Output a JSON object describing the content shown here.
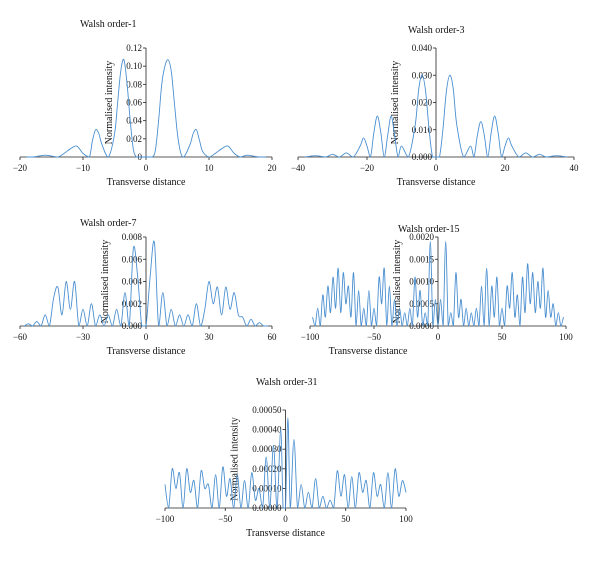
{
  "chart_data": [
    {
      "type": "line",
      "title": "Walsh order-1",
      "xlabel": "Transverse distance",
      "ylabel": "Normalised intensity",
      "xlim": [
        -20,
        20
      ],
      "ylim": [
        0,
        0.12
      ],
      "xticks": [
        -20,
        -10,
        0,
        10,
        20
      ],
      "xtick_labels": [
        "−20",
        "−10",
        "0",
        "10",
        "20"
      ],
      "yticks": [
        0,
        0.02,
        0.04,
        0.06,
        0.08,
        0.1,
        0.12
      ],
      "ytick_labels": [
        "0",
        "0.02",
        "0.04",
        "0.06",
        "0.08",
        "0.10",
        "0.12"
      ],
      "series": [
        {
          "x": [
            -19,
            -18,
            -17,
            -16,
            -15,
            -14,
            -13,
            -12,
            -11,
            -10,
            -9,
            -8.5,
            -8,
            -7.5,
            -7,
            -6,
            -5,
            -4.5,
            -4,
            -3.5,
            -3,
            -2.5,
            -2,
            -1.5,
            -1,
            0,
            1,
            1.5,
            2,
            2.5,
            3,
            3.5,
            4,
            4.5,
            5,
            5.5,
            6,
            7,
            7.5,
            8,
            8.5,
            9,
            10,
            11,
            12,
            13,
            14,
            15,
            16,
            17,
            18,
            19
          ],
          "y": [
            0,
            0,
            0.001,
            0.002,
            0.001,
            0,
            0.004,
            0.009,
            0.012,
            0.004,
            0,
            0.018,
            0.03,
            0.026,
            0.014,
            0,
            0.025,
            0.06,
            0.095,
            0.107,
            0.08,
            0.04,
            0.008,
            0,
            0,
            0,
            0,
            0.008,
            0.04,
            0.08,
            0.1,
            0.107,
            0.095,
            0.06,
            0.025,
            0.005,
            0,
            0.014,
            0.026,
            0.03,
            0.018,
            0.006,
            0,
            0.004,
            0.009,
            0.012,
            0.004,
            0,
            0.002,
            0.001,
            0,
            0
          ]
        }
      ]
    },
    {
      "type": "line",
      "title": "Walsh order-3",
      "xlabel": "Transverse distance",
      "ylabel": "Normalised intensity",
      "xlim": [
        -40,
        40
      ],
      "ylim": [
        0,
        0.04
      ],
      "xticks": [
        -40,
        -20,
        0,
        20,
        40
      ],
      "xtick_labels": [
        "−40",
        "−20",
        "0",
        "20",
        "40"
      ],
      "yticks": [
        0,
        0.01,
        0.02,
        0.03,
        0.04
      ],
      "ytick_labels": [
        "0.000",
        "0.010",
        "0.020",
        "0.030",
        "0.040"
      ],
      "series": [
        {
          "x": [
            -38,
            -35,
            -32,
            -30,
            -28,
            -26,
            -24,
            -22,
            -21,
            -20,
            -19,
            -18,
            -17,
            -16,
            -15,
            -14,
            -13,
            -12,
            -11,
            -10,
            -8,
            -6,
            -5,
            -4,
            -3,
            -2,
            -1,
            0,
            1,
            2,
            3,
            4,
            5,
            6,
            8,
            10,
            11,
            12,
            13,
            14,
            15,
            16,
            17,
            18,
            19,
            20,
            21,
            22,
            24,
            26,
            28,
            30,
            32,
            35,
            38
          ],
          "y": [
            0,
            0.0005,
            0,
            0.001,
            0,
            0.0015,
            0,
            0.004,
            0.007,
            0.004,
            0,
            0.009,
            0.015,
            0.009,
            0,
            0.008,
            0.015,
            0.008,
            0,
            0.004,
            0,
            0.012,
            0.025,
            0.03,
            0.024,
            0.01,
            0,
            0,
            0,
            0.01,
            0.024,
            0.03,
            0.025,
            0.012,
            0,
            0.004,
            0,
            0.008,
            0.013,
            0.008,
            0,
            0.009,
            0.015,
            0.009,
            0,
            0.004,
            0.007,
            0.004,
            0,
            0.0015,
            0,
            0.001,
            0,
            0.0005,
            0
          ]
        }
      ]
    },
    {
      "type": "line",
      "title": "Walsh order-7",
      "xlabel": "Transverse distance",
      "ylabel": "Normalised intensity",
      "xlim": [
        -60,
        60
      ],
      "ylim": [
        0,
        0.008
      ],
      "xticks": [
        -60,
        -30,
        0,
        30,
        60
      ],
      "xtick_labels": [
        "−60",
        "−30",
        "0",
        "30",
        "60"
      ],
      "yticks": [
        0,
        0.002,
        0.004,
        0.006,
        0.008
      ],
      "ytick_labels": [
        "0.000",
        "0.002",
        "0.004",
        "0.006",
        "0.008"
      ],
      "series": [
        {
          "x": [
            -58,
            -56,
            -54,
            -52,
            -50,
            -48,
            -46,
            -44,
            -42,
            -40,
            -38,
            -36,
            -34,
            -32,
            -30,
            -28,
            -26,
            -24,
            -22,
            -20,
            -18,
            -16,
            -14,
            -12,
            -10,
            -8,
            -6,
            -4,
            -2,
            0,
            2,
            4,
            6,
            8,
            10,
            12,
            14,
            16,
            18,
            20,
            22,
            24,
            26,
            28,
            30,
            32,
            34,
            36,
            38,
            40,
            42,
            44,
            46,
            48,
            50,
            52,
            54,
            56,
            58
          ],
          "y": [
            0,
            0.0002,
            0,
            0.0004,
            0,
            0.001,
            0,
            0.0025,
            0.0035,
            0.001,
            0.004,
            0.0015,
            0.004,
            0,
            0.0015,
            0,
            0.002,
            0,
            0.001,
            0,
            0.001,
            0,
            0.0015,
            0,
            0.003,
            0,
            0.007,
            0.0045,
            0,
            0,
            0.0045,
            0.0075,
            0,
            0.003,
            0,
            0.0015,
            0,
            0.001,
            0,
            0.001,
            0,
            0.002,
            0,
            0.0015,
            0.004,
            0.002,
            0.0035,
            0.001,
            0.0035,
            0.0015,
            0.003,
            0.001,
            0.0008,
            0,
            0.0006,
            0,
            0.0003,
            0,
            0
          ]
        }
      ]
    },
    {
      "type": "line",
      "title": "Walsh order-15",
      "xlabel": "Transverse distance",
      "ylabel": "Normalised intensity",
      "xlim": [
        -100,
        100
      ],
      "ylim": [
        0,
        0.002
      ],
      "xticks": [
        -100,
        -50,
        0,
        50,
        100
      ],
      "xtick_labels": [
        "−100",
        "−50",
        "0",
        "50",
        "100"
      ],
      "yticks": [
        0,
        0.0005,
        0.001,
        0.0015,
        0.002
      ],
      "ytick_labels": [
        "0.0000",
        "0.0005",
        "0.0010",
        "0.0015",
        "0.0020"
      ],
      "series": [
        {
          "x": [
            -98,
            -96,
            -94,
            -92,
            -90,
            -88,
            -86,
            -84,
            -82,
            -80,
            -78,
            -76,
            -74,
            -72,
            -70,
            -68,
            -66,
            -64,
            -62,
            -60,
            -58,
            -56,
            -54,
            -52,
            -50,
            -48,
            -46,
            -44,
            -42,
            -40,
            -38,
            -36,
            -34,
            -32,
            -30,
            -28,
            -26,
            -24,
            -22,
            -20,
            -18,
            -16,
            -14,
            -12,
            -10,
            -8,
            -6,
            -4,
            -2,
            0,
            2,
            4,
            6,
            8,
            10,
            12,
            14,
            16,
            18,
            20,
            22,
            24,
            26,
            28,
            30,
            32,
            34,
            36,
            38,
            40,
            42,
            44,
            46,
            48,
            50,
            52,
            54,
            56,
            58,
            60,
            62,
            64,
            66,
            68,
            70,
            72,
            74,
            76,
            78,
            80,
            82,
            84,
            86,
            88,
            90,
            92,
            94,
            96,
            98
          ],
          "y": [
            0.0002,
            0,
            0.0004,
            0,
            0.0007,
            0.0002,
            0.0009,
            0.0003,
            0.0011,
            0.0004,
            0.0013,
            0.0003,
            0.0012,
            0.0005,
            0.0009,
            0.0002,
            0.0012,
            0,
            0.0008,
            0,
            0.0004,
            0,
            0.0008,
            0,
            0.0004,
            0,
            0.0011,
            0.0005,
            0.0013,
            0,
            0.0009,
            0,
            0.0006,
            0,
            0.0004,
            0,
            0.0003,
            0,
            0.0004,
            0,
            0.0011,
            0.0002,
            0.0008,
            0,
            0.0003,
            0,
            0.0019,
            0,
            0.0006,
            0,
            0.0006,
            0,
            0.0019,
            0,
            0.0003,
            0,
            0.0012,
            0.0002,
            0.0006,
            0,
            0.0004,
            0,
            0.0003,
            0,
            0.0004,
            0,
            0.0009,
            0,
            0.0013,
            0,
            0.0009,
            0.0002,
            0.0011,
            0,
            0.0004,
            0,
            0.0009,
            0.0004,
            0.0012,
            0.0002,
            0.0007,
            0,
            0.0011,
            0.0003,
            0.0014,
            0.0005,
            0.0012,
            0.0003,
            0.001,
            0.0004,
            0.0013,
            0.0002,
            0.0008,
            0.0002,
            0.0005,
            0,
            0.0003,
            0,
            0.0002
          ]
        }
      ]
    },
    {
      "type": "line",
      "title": "Walsh order-31",
      "xlabel": "Transverse distance",
      "ylabel": "Normalised intensity",
      "xlim": [
        -100,
        100
      ],
      "ylim": [
        0,
        0.0005
      ],
      "xticks": [
        -100,
        -50,
        0,
        50,
        100
      ],
      "xtick_labels": [
        "−100",
        "−50",
        "0",
        "50",
        "100"
      ],
      "yticks": [
        0,
        0.0001,
        0.0002,
        0.0003,
        0.0004,
        0.0005
      ],
      "ytick_labels": [
        "0.00000",
        "0.00010",
        "0.00020",
        "0.00030",
        "0.00040",
        "0.00050"
      ],
      "series": [
        {
          "x": [
            -100,
            -97,
            -94,
            -91,
            -88,
            -85,
            -82,
            -79,
            -76,
            -73,
            -70,
            -67,
            -64,
            -61,
            -58,
            -55,
            -52,
            -49,
            -46,
            -43,
            -40,
            -37,
            -34,
            -31,
            -28,
            -25,
            -22,
            -19,
            -16,
            -13,
            -10,
            -7,
            -4,
            -2,
            0,
            2,
            4,
            7,
            10,
            13,
            16,
            19,
            22,
            25,
            28,
            31,
            34,
            37,
            40,
            43,
            46,
            49,
            52,
            55,
            58,
            61,
            64,
            67,
            70,
            73,
            76,
            79,
            82,
            85,
            88,
            91,
            94,
            97,
            100
          ],
          "y": [
            0.00012,
            0,
            0.0002,
            0.0001,
            0.00018,
            0,
            0.0002,
            8e-05,
            0.00014,
            0,
            0.00019,
            0.0001,
            0.00012,
            0,
            0.00017,
            0,
            0.00021,
            6e-05,
            0.00015,
            0,
            0.00017,
            0,
            0.00014,
            0,
            0.00018,
            4e-05,
            0.0001,
            0,
            0.00026,
            0,
            0.00032,
            0,
            0.0004,
            0,
            0,
            0.00046,
            0,
            0.00035,
            0,
            0.00012,
            0,
            8e-05,
            0,
            0.00015,
            0,
            6e-05,
            0,
            4e-05,
            0,
            0.00019,
            6e-05,
            0.00017,
            0,
            0.00016,
            0,
            0.00018,
            8e-05,
            0.00014,
            0,
            0.00018,
            6e-05,
            0.00012,
            0,
            0.00018,
            0,
            0.0002,
            6e-05,
            0.00014,
            8e-05
          ]
        }
      ]
    }
  ]
}
